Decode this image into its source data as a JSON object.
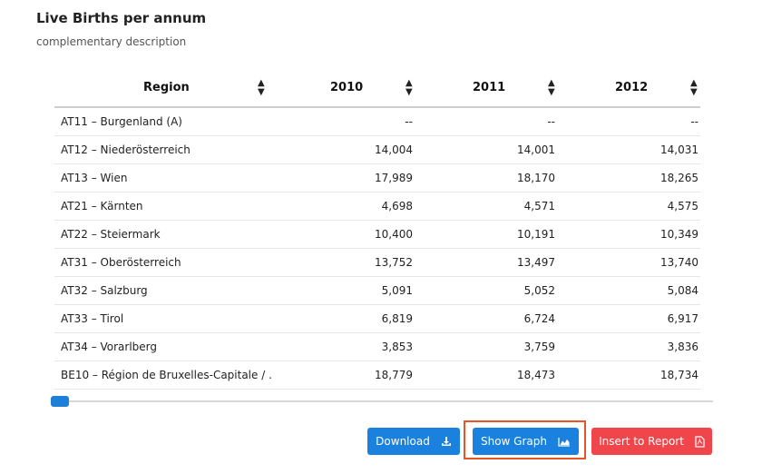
{
  "header": {
    "title": "Live Births per annum",
    "subtitle": "complementary description"
  },
  "table": {
    "columns": [
      "Region",
      "2010",
      "2011",
      "2012"
    ],
    "rows": [
      {
        "region": "AT11 – Burgenland (A)",
        "v2010": "--",
        "v2011": "--",
        "v2012": "--"
      },
      {
        "region": "AT12 – Niederösterreich",
        "v2010": "14,004",
        "v2011": "14,001",
        "v2012": "14,031"
      },
      {
        "region": "AT13 – Wien",
        "v2010": "17,989",
        "v2011": "18,170",
        "v2012": "18,265"
      },
      {
        "region": "AT21 – Kärnten",
        "v2010": "4,698",
        "v2011": "4,571",
        "v2012": "4,575"
      },
      {
        "region": "AT22 – Steiermark",
        "v2010": "10,400",
        "v2011": "10,191",
        "v2012": "10,349"
      },
      {
        "region": "AT31 – Oberösterreich",
        "v2010": "13,752",
        "v2011": "13,497",
        "v2012": "13,740"
      },
      {
        "region": "AT32 – Salzburg",
        "v2010": "5,091",
        "v2011": "5,052",
        "v2012": "5,084"
      },
      {
        "region": "AT33 – Tirol",
        "v2010": "6,819",
        "v2011": "6,724",
        "v2012": "6,917"
      },
      {
        "region": "AT34 – Vorarlberg",
        "v2010": "3,853",
        "v2011": "3,759",
        "v2012": "3,836"
      },
      {
        "region": "BE10 – Région de Bruxelles-Capitale / ...",
        "v2010": "18,779",
        "v2011": "18,473",
        "v2012": "18,734"
      }
    ],
    "sort_icon": "sort-icon"
  },
  "scrollbar": {
    "position_fraction": 0.0
  },
  "buttons": {
    "download": {
      "label": "Download",
      "icon": "download-icon"
    },
    "show_graph": {
      "label": "Show Graph",
      "icon": "area-chart-icon"
    },
    "insert_report": {
      "label": "Insert to Report",
      "icon": "pdf-file-icon"
    }
  },
  "colors": {
    "primary": "#1a82de",
    "danger": "#f0454a",
    "highlight": "#e8532a"
  }
}
